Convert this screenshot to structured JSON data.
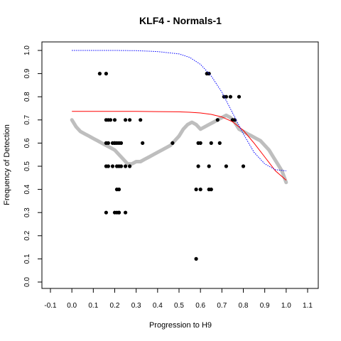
{
  "chart_data": {
    "type": "scatter",
    "title": "KLF4 - Normals-1",
    "xlabel": "Progression to H9",
    "ylabel": "Frequency of Detection",
    "xlim": [
      -0.1,
      1.1
    ],
    "ylim": [
      0.0,
      1.0
    ],
    "xticks": [
      "-0.1",
      "0.0",
      "0.1",
      "0.2",
      "0.3",
      "0.4",
      "0.5",
      "0.6",
      "0.7",
      "0.8",
      "0.9",
      "1.0",
      "1.1"
    ],
    "yticks": [
      "0.0",
      "0.1",
      "0.2",
      "0.3",
      "0.4",
      "0.5",
      "0.6",
      "0.7",
      "0.8",
      "0.9",
      "1.0"
    ],
    "grid": false,
    "legend": "none",
    "colors": {
      "points": "#000000",
      "smooth": "#bebebe",
      "fit": "#ff0000",
      "dotted": "#0000ff"
    },
    "series": [
      {
        "role": "points",
        "style": "black dots",
        "x": [
          0.13,
          0.16,
          0.16,
          0.17,
          0.18,
          0.19,
          0.2,
          0.2,
          0.21,
          0.22,
          0.23,
          0.16,
          0.17,
          0.19,
          0.21,
          0.22,
          0.25,
          0.27,
          0.16,
          0.17,
          0.2,
          0.23,
          0.25,
          0.27,
          0.32,
          0.33,
          0.47,
          0.21,
          0.22,
          0.21,
          0.22,
          0.16,
          0.2,
          0.22,
          0.25,
          0.58,
          0.59,
          0.6,
          0.63,
          0.64,
          0.65,
          0.65,
          0.68,
          0.69,
          0.71,
          0.72,
          0.72,
          0.74,
          0.75,
          0.76,
          0.78,
          0.8,
          0.59,
          0.6,
          0.64,
          0.64,
          0.58
        ],
        "y": [
          0.9,
          0.9,
          0.7,
          0.7,
          0.7,
          0.6,
          0.7,
          0.6,
          0.6,
          0.6,
          0.5,
          0.5,
          0.5,
          0.5,
          0.5,
          0.5,
          0.5,
          0.5,
          0.6,
          0.6,
          0.6,
          0.6,
          0.7,
          0.7,
          0.7,
          0.6,
          0.6,
          0.4,
          0.4,
          0.3,
          0.3,
          0.3,
          0.3,
          0.3,
          0.3,
          0.4,
          0.5,
          0.4,
          0.9,
          0.9,
          0.6,
          0.4,
          0.7,
          0.6,
          0.8,
          0.8,
          0.5,
          0.8,
          0.7,
          0.7,
          0.8,
          0.5,
          0.6,
          0.6,
          0.5,
          0.4,
          0.1
        ]
      },
      {
        "role": "smooth",
        "style": "thick grey curve",
        "x": [
          0.0,
          0.02,
          0.04,
          0.06,
          0.08,
          0.1,
          0.12,
          0.14,
          0.16,
          0.18,
          0.2,
          0.22,
          0.24,
          0.26,
          0.28,
          0.3,
          0.32,
          0.34,
          0.36,
          0.38,
          0.4,
          0.42,
          0.44,
          0.46,
          0.48,
          0.5,
          0.52,
          0.54,
          0.56,
          0.58,
          0.6,
          0.62,
          0.64,
          0.66,
          0.68,
          0.7,
          0.72,
          0.74,
          0.76,
          0.78,
          0.8,
          0.82,
          0.84,
          0.86,
          0.88,
          0.9,
          0.92,
          0.94,
          0.96,
          0.98,
          1.0
        ],
        "y": [
          0.7,
          0.67,
          0.65,
          0.64,
          0.63,
          0.62,
          0.61,
          0.6,
          0.59,
          0.58,
          0.57,
          0.55,
          0.53,
          0.51,
          0.51,
          0.52,
          0.52,
          0.53,
          0.54,
          0.55,
          0.56,
          0.57,
          0.58,
          0.59,
          0.61,
          0.63,
          0.66,
          0.68,
          0.69,
          0.68,
          0.66,
          0.67,
          0.68,
          0.69,
          0.7,
          0.71,
          0.72,
          0.71,
          0.69,
          0.66,
          0.65,
          0.64,
          0.63,
          0.62,
          0.61,
          0.59,
          0.57,
          0.54,
          0.51,
          0.48,
          0.43
        ]
      },
      {
        "role": "fit",
        "style": "red line",
        "x": [
          0.0,
          0.1,
          0.2,
          0.3,
          0.4,
          0.5,
          0.55,
          0.6,
          0.65,
          0.7,
          0.75,
          0.8,
          0.85,
          0.9,
          0.95,
          1.0
        ],
        "y": [
          0.737,
          0.737,
          0.737,
          0.737,
          0.736,
          0.735,
          0.733,
          0.73,
          0.724,
          0.713,
          0.692,
          0.655,
          0.6,
          0.54,
          0.48,
          0.44
        ]
      },
      {
        "role": "dotted",
        "style": "blue dotted curve",
        "x": [
          0.0,
          0.1,
          0.2,
          0.3,
          0.4,
          0.5,
          0.55,
          0.6,
          0.65,
          0.7,
          0.75,
          0.8,
          0.85,
          0.9,
          0.95,
          1.0
        ],
        "y": [
          1.0,
          1.0,
          1.0,
          0.999,
          0.995,
          0.985,
          0.97,
          0.94,
          0.89,
          0.82,
          0.73,
          0.64,
          0.56,
          0.51,
          0.485,
          0.48
        ]
      }
    ]
  }
}
